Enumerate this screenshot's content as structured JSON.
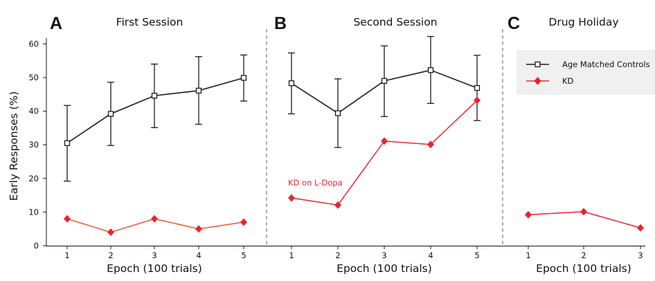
{
  "colors": {
    "controls": "#1a1a1a",
    "kd": "#e8242f",
    "kd_session1_line": "#f0562d",
    "divider": "#777777",
    "legend_bg": "#f0f0f0"
  },
  "chart_data": [
    {
      "type": "line",
      "panel": "A",
      "title": "First Session",
      "xlabel": "Epoch (100 trials)",
      "ylabel": "Early Responses (%)",
      "x": [
        1,
        2,
        3,
        4,
        5
      ],
      "x_tick_labels": [
        "1",
        "2",
        "3",
        "4",
        "5"
      ],
      "ylim": [
        0,
        65
      ],
      "y_ticks": [
        0,
        10,
        20,
        30,
        40,
        50,
        60
      ],
      "series": [
        {
          "name": "Age Matched Controls",
          "values": [
            30.5,
            39.2,
            44.6,
            46.1,
            49.9
          ],
          "error_low": [
            19.2,
            29.8,
            35.1,
            36.1,
            43.0
          ],
          "error_high": [
            41.7,
            48.6,
            54.0,
            56.2,
            56.7
          ]
        },
        {
          "name": "KD",
          "values": [
            8.0,
            4.0,
            8.0,
            5.0,
            7.0
          ]
        }
      ]
    },
    {
      "type": "line",
      "panel": "B",
      "title": "Second Session",
      "xlabel": "Epoch (100 trials)",
      "x": [
        1,
        2,
        3,
        4,
        5
      ],
      "x_tick_labels": [
        "1",
        "2",
        "3",
        "4",
        "5"
      ],
      "ylim": [
        0,
        65
      ],
      "annotation": "KD on L-Dopa",
      "series": [
        {
          "name": "Age Matched Controls",
          "values": [
            48.3,
            39.4,
            49.0,
            52.2,
            46.9
          ],
          "error_low": [
            39.2,
            29.2,
            38.4,
            42.3,
            37.2
          ],
          "error_high": [
            57.3,
            49.6,
            59.4,
            62.2,
            56.6
          ]
        },
        {
          "name": "KD",
          "values": [
            14.2,
            12.1,
            31.1,
            30.1,
            43.2
          ]
        }
      ]
    },
    {
      "type": "line",
      "panel": "C",
      "title": "Drug Holiday",
      "xlabel": "Epoch (100 trials)",
      "x": [
        1,
        2,
        3
      ],
      "x_tick_labels": [
        "1",
        "2",
        "3"
      ],
      "ylim": [
        0,
        65
      ],
      "series": [
        {
          "name": "KD",
          "values": [
            9.2,
            10.1,
            5.3
          ]
        }
      ]
    }
  ],
  "legend": {
    "placement": "top-right",
    "items": [
      {
        "label": "Age Matched Controls",
        "marker": "square"
      },
      {
        "label": "KD",
        "marker": "diamond"
      }
    ]
  }
}
